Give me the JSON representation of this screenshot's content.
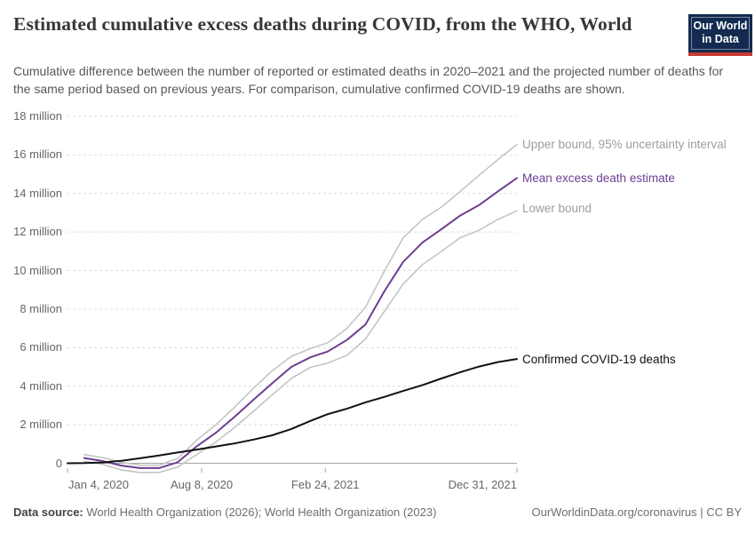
{
  "header": {
    "title": "Estimated cumulative excess deaths during COVID, from the WHO, World",
    "subtitle": "Cumulative difference between the number of reported or estimated deaths in 2020–2021 and the projected number of deaths for the same period based on previous years. For comparison, cumulative confirmed COVID-19 deaths are shown.",
    "logo": {
      "line1": "Our World",
      "line2": "in Data",
      "bg_color": "#132B50",
      "accent_color": "#C63A31"
    }
  },
  "chart_data": {
    "type": "line",
    "title": "Estimated cumulative excess deaths during COVID, from the WHO, World",
    "xlabel": "",
    "ylabel": "",
    "x_unit": "days since Jan 4, 2020",
    "x_range_days": [
      0,
      727
    ],
    "ylim_millions": [
      -0.55,
      18
    ],
    "grid": "dashed horizontal",
    "legend_position": "right edge labels",
    "x_ticks": [
      {
        "label": "Jan 4, 2020",
        "day": 0,
        "align": "start"
      },
      {
        "label": "Aug 8, 2020",
        "day": 217,
        "align": "middle"
      },
      {
        "label": "Feb 24, 2021",
        "day": 417,
        "align": "middle"
      },
      {
        "label": "Dec 31, 2021",
        "day": 727,
        "align": "end"
      }
    ],
    "y_ticks": [
      {
        "value": 18,
        "label": "18 million"
      },
      {
        "value": 16,
        "label": "16 million"
      },
      {
        "value": 14,
        "label": "14 million"
      },
      {
        "value": 12,
        "label": "12 million"
      },
      {
        "value": 10,
        "label": "10 million"
      },
      {
        "value": 8,
        "label": "8 million"
      },
      {
        "value": 6,
        "label": "6 million"
      },
      {
        "value": 4,
        "label": "4 million"
      },
      {
        "value": 2,
        "label": "2 million"
      },
      {
        "value": 0,
        "label": "0"
      }
    ],
    "series": [
      {
        "name": "Upper bound, 95% uncertainty interval",
        "color": "#c5c5c5",
        "label_color": "#9e9e9e",
        "width": 1.6,
        "points_day_millions": [
          [
            27,
            0.45
          ],
          [
            56,
            0.3
          ],
          [
            87,
            0.05
          ],
          [
            117,
            -0.1
          ],
          [
            148,
            -0.1
          ],
          [
            178,
            0.25
          ],
          [
            209,
            1.2
          ],
          [
            240,
            2.0
          ],
          [
            270,
            2.9
          ],
          [
            301,
            3.9
          ],
          [
            331,
            4.8
          ],
          [
            362,
            5.55
          ],
          [
            393,
            5.95
          ],
          [
            421,
            6.25
          ],
          [
            452,
            7.0
          ],
          [
            482,
            8.1
          ],
          [
            513,
            10.0
          ],
          [
            543,
            11.7
          ],
          [
            574,
            12.65
          ],
          [
            605,
            13.3
          ],
          [
            635,
            14.1
          ],
          [
            666,
            14.95
          ],
          [
            696,
            15.75
          ],
          [
            727,
            16.55
          ]
        ]
      },
      {
        "name": "Mean excess death estimate",
        "color": "#6D3E91",
        "label_color": "#6D3E91",
        "width": 2,
        "points_day_millions": [
          [
            27,
            0.27
          ],
          [
            56,
            0.12
          ],
          [
            87,
            -0.12
          ],
          [
            117,
            -0.25
          ],
          [
            148,
            -0.25
          ],
          [
            178,
            0.05
          ],
          [
            209,
            0.88
          ],
          [
            240,
            1.58
          ],
          [
            270,
            2.4
          ],
          [
            301,
            3.3
          ],
          [
            331,
            4.15
          ],
          [
            362,
            5.0
          ],
          [
            393,
            5.5
          ],
          [
            421,
            5.8
          ],
          [
            452,
            6.4
          ],
          [
            482,
            7.2
          ],
          [
            513,
            8.95
          ],
          [
            543,
            10.45
          ],
          [
            574,
            11.45
          ],
          [
            605,
            12.15
          ],
          [
            635,
            12.85
          ],
          [
            666,
            13.4
          ],
          [
            696,
            14.1
          ],
          [
            727,
            14.8
          ]
        ]
      },
      {
        "name": "Lower bound",
        "color": "#c5c5c5",
        "label_color": "#9e9e9e",
        "width": 1.6,
        "points_day_millions": [
          [
            27,
            0.1
          ],
          [
            56,
            -0.05
          ],
          [
            87,
            -0.35
          ],
          [
            117,
            -0.48
          ],
          [
            148,
            -0.48
          ],
          [
            178,
            -0.2
          ],
          [
            209,
            0.45
          ],
          [
            240,
            1.1
          ],
          [
            270,
            1.85
          ],
          [
            301,
            2.7
          ],
          [
            331,
            3.55
          ],
          [
            362,
            4.4
          ],
          [
            393,
            4.98
          ],
          [
            421,
            5.2
          ],
          [
            452,
            5.6
          ],
          [
            482,
            6.45
          ],
          [
            513,
            7.9
          ],
          [
            543,
            9.3
          ],
          [
            574,
            10.3
          ],
          [
            605,
            11.0
          ],
          [
            635,
            11.7
          ],
          [
            666,
            12.1
          ],
          [
            696,
            12.65
          ],
          [
            727,
            13.1
          ]
        ]
      },
      {
        "name": "Confirmed COVID-19 deaths",
        "color": "#111111",
        "label_color": "#111111",
        "width": 2,
        "points_day_millions": [
          [
            0,
            0
          ],
          [
            27,
            0.01
          ],
          [
            56,
            0.04
          ],
          [
            87,
            0.13
          ],
          [
            117,
            0.26
          ],
          [
            148,
            0.4
          ],
          [
            178,
            0.56
          ],
          [
            209,
            0.71
          ],
          [
            240,
            0.87
          ],
          [
            270,
            1.03
          ],
          [
            301,
            1.23
          ],
          [
            331,
            1.45
          ],
          [
            362,
            1.78
          ],
          [
            393,
            2.2
          ],
          [
            421,
            2.55
          ],
          [
            452,
            2.83
          ],
          [
            482,
            3.16
          ],
          [
            513,
            3.45
          ],
          [
            543,
            3.75
          ],
          [
            574,
            4.05
          ],
          [
            605,
            4.4
          ],
          [
            635,
            4.72
          ],
          [
            666,
            5.02
          ],
          [
            696,
            5.25
          ],
          [
            727,
            5.41
          ]
        ]
      }
    ]
  },
  "footer": {
    "source_label": "Data source:",
    "source_text": " World Health Organization (2026); World Health Organization (2023)",
    "rights": "OurWorldinData.org/coronavirus | CC BY"
  }
}
